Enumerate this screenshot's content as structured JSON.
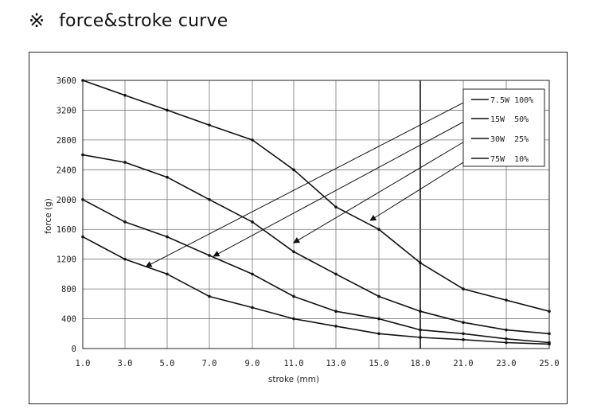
{
  "heading": {
    "mark": "※",
    "text": "force&stroke curve"
  },
  "chart_data": {
    "type": "line",
    "title": "",
    "xlabel": "stroke (mm)",
    "ylabel": "force (g)",
    "xlim": [
      1.0,
      25.0
    ],
    "ylim": [
      0,
      3600
    ],
    "x_ticks": [
      1.0,
      3.0,
      5.0,
      7.0,
      9.0,
      11.0,
      13.0,
      15.0,
      18.0,
      21.0,
      23.0,
      25.0
    ],
    "x_tick_labels": [
      "1.0",
      "3.0",
      "5.0",
      "7.0",
      "9.0",
      "11.0",
      "13.0",
      "15.0",
      "18.0",
      "21.0",
      "23.0",
      "25.0"
    ],
    "y_ticks": [
      0,
      400,
      800,
      1200,
      1600,
      2000,
      2400,
      2800,
      3200,
      3600
    ],
    "y_tick_labels": [
      "0",
      "400",
      "800",
      "1200",
      "1600",
      "2000",
      "2400",
      "2800",
      "3200",
      "3600"
    ],
    "grid": true,
    "legend_position": "top-right",
    "series": [
      {
        "name": "7.5W 100%",
        "points": [
          [
            1.0,
            3600
          ],
          [
            3.0,
            3400
          ],
          [
            5.0,
            3200
          ],
          [
            7.0,
            3000
          ],
          [
            9.0,
            2800
          ],
          [
            11.0,
            2400
          ],
          [
            13.0,
            1900
          ],
          [
            15.0,
            1600
          ],
          [
            18.0,
            1150
          ],
          [
            21.0,
            800
          ],
          [
            23.0,
            650
          ],
          [
            25.0,
            500
          ]
        ]
      },
      {
        "name": "15W  50%",
        "points": [
          [
            1.0,
            2600
          ],
          [
            3.0,
            2500
          ],
          [
            5.0,
            2300
          ],
          [
            7.0,
            2000
          ],
          [
            9.0,
            1700
          ],
          [
            11.0,
            1300
          ],
          [
            13.0,
            1000
          ],
          [
            15.0,
            700
          ],
          [
            18.0,
            500
          ],
          [
            21.0,
            350
          ],
          [
            23.0,
            250
          ],
          [
            25.0,
            200
          ]
        ]
      },
      {
        "name": "30W  25%",
        "points": [
          [
            1.0,
            2000
          ],
          [
            3.0,
            1700
          ],
          [
            5.0,
            1500
          ],
          [
            7.0,
            1250
          ],
          [
            9.0,
            1000
          ],
          [
            11.0,
            700
          ],
          [
            13.0,
            500
          ],
          [
            15.0,
            400
          ],
          [
            18.0,
            250
          ],
          [
            21.0,
            200
          ],
          [
            23.0,
            130
          ],
          [
            25.0,
            80
          ]
        ]
      },
      {
        "name": "75W  10%",
        "points": [
          [
            1.0,
            1500
          ],
          [
            3.0,
            1200
          ],
          [
            5.0,
            1000
          ],
          [
            7.0,
            700
          ],
          [
            9.0,
            550
          ],
          [
            11.0,
            400
          ],
          [
            13.0,
            300
          ],
          [
            15.0,
            200
          ],
          [
            18.0,
            150
          ],
          [
            21.0,
            120
          ],
          [
            23.0,
            80
          ],
          [
            25.0,
            60
          ]
        ]
      }
    ],
    "annotation_arrows": [
      {
        "series": "7.5W 100%",
        "to": [
          4.0,
          1100
        ]
      },
      {
        "series": "15W  50%",
        "to": [
          7.2,
          1240
        ]
      },
      {
        "series": "30W  25%",
        "to": [
          11.0,
          1420
        ]
      },
      {
        "series": "75W  10%",
        "to": [
          14.6,
          1720
        ]
      }
    ]
  }
}
